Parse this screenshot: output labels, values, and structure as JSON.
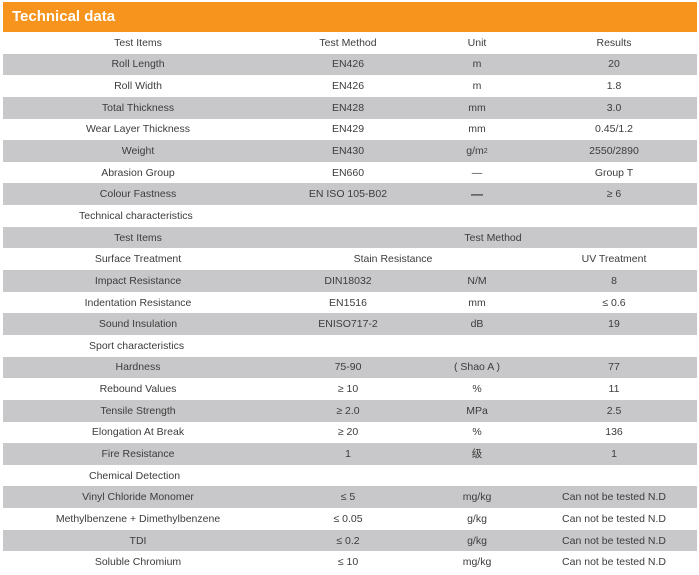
{
  "title": "Technical data",
  "header": {
    "item": "Test Items",
    "method": "Test Method",
    "unit": "Unit",
    "results": "Results"
  },
  "basic_rows": [
    {
      "item": "Roll Length",
      "method": "EN426",
      "unit": "m",
      "result": "20"
    },
    {
      "item": "Roll Width",
      "method": "EN426",
      "unit": "m",
      "result": "1.8"
    },
    {
      "item": "Total Thickness",
      "method": "EN428",
      "unit": "mm",
      "result": "3.0"
    },
    {
      "item": "Wear Layer Thickness",
      "method": "EN429",
      "unit": "mm",
      "result": "0.45/1.2"
    },
    {
      "item": "Weight",
      "method": "EN430",
      "unit": "g/m",
      "unit_sup": "2",
      "result": "2550/2890"
    },
    {
      "item": "Abrasion Group",
      "method": "EN660",
      "unit": "—",
      "result": "Group T"
    },
    {
      "item": "Colour Fastness",
      "method": "EN ISO 105-B02",
      "unit": "—",
      "result": "≥ 6"
    }
  ],
  "technical": {
    "section_label": "Technical characteristics",
    "header_item": "Test Items",
    "header_method": "Test Method",
    "surface": {
      "item": "Surface Treatment",
      "a": "Stain Resistance",
      "b": "UV Treatment"
    },
    "rows": [
      {
        "item": "Impact Resistance",
        "method": "DIN18032",
        "unit": "N/M",
        "result": "8"
      },
      {
        "item": "Indentation Resistance",
        "method": "EN1516",
        "unit": "mm",
        "result": "≤ 0.6"
      },
      {
        "item": "Sound Insulation",
        "method": "ENISO717-2",
        "unit": "dB",
        "result": "19"
      }
    ]
  },
  "sport": {
    "section_label": "Sport characteristics",
    "rows": [
      {
        "item": "Hardness",
        "method": "75-90",
        "unit": "( Shao A )",
        "result": "77"
      },
      {
        "item": "Rebound Values",
        "method": "≥ 10",
        "unit": "%",
        "result": "11"
      },
      {
        "item": "Tensile Strength",
        "method": "≥ 2.0",
        "unit": "MPa",
        "result": "2.5"
      },
      {
        "item": "Elongation At Break",
        "method": "≥ 20",
        "unit": "%",
        "result": "136"
      },
      {
        "item": "Fire Resistance",
        "method": "1",
        "unit": "级",
        "result": "1"
      }
    ]
  },
  "chemical": {
    "section_label": "Chemical Detection",
    "rows": [
      {
        "item": "Vinyl Chloride Monomer",
        "method": "≤ 5",
        "unit": "mg/kg",
        "result": "Can not be tested N.D"
      },
      {
        "item": "Methylbenzene + Dimethylbenzene",
        "method": "≤ 0.05",
        "unit": "g/kg",
        "result": "Can not be tested N.D"
      },
      {
        "item": "TDI",
        "method": "≤ 0.2",
        "unit": "g/kg",
        "result": "Can not be tested N.D"
      },
      {
        "item": "Soluble Chromium",
        "method": "≤ 10",
        "unit": "mg/kg",
        "result": "Can not be tested N.D"
      }
    ]
  }
}
